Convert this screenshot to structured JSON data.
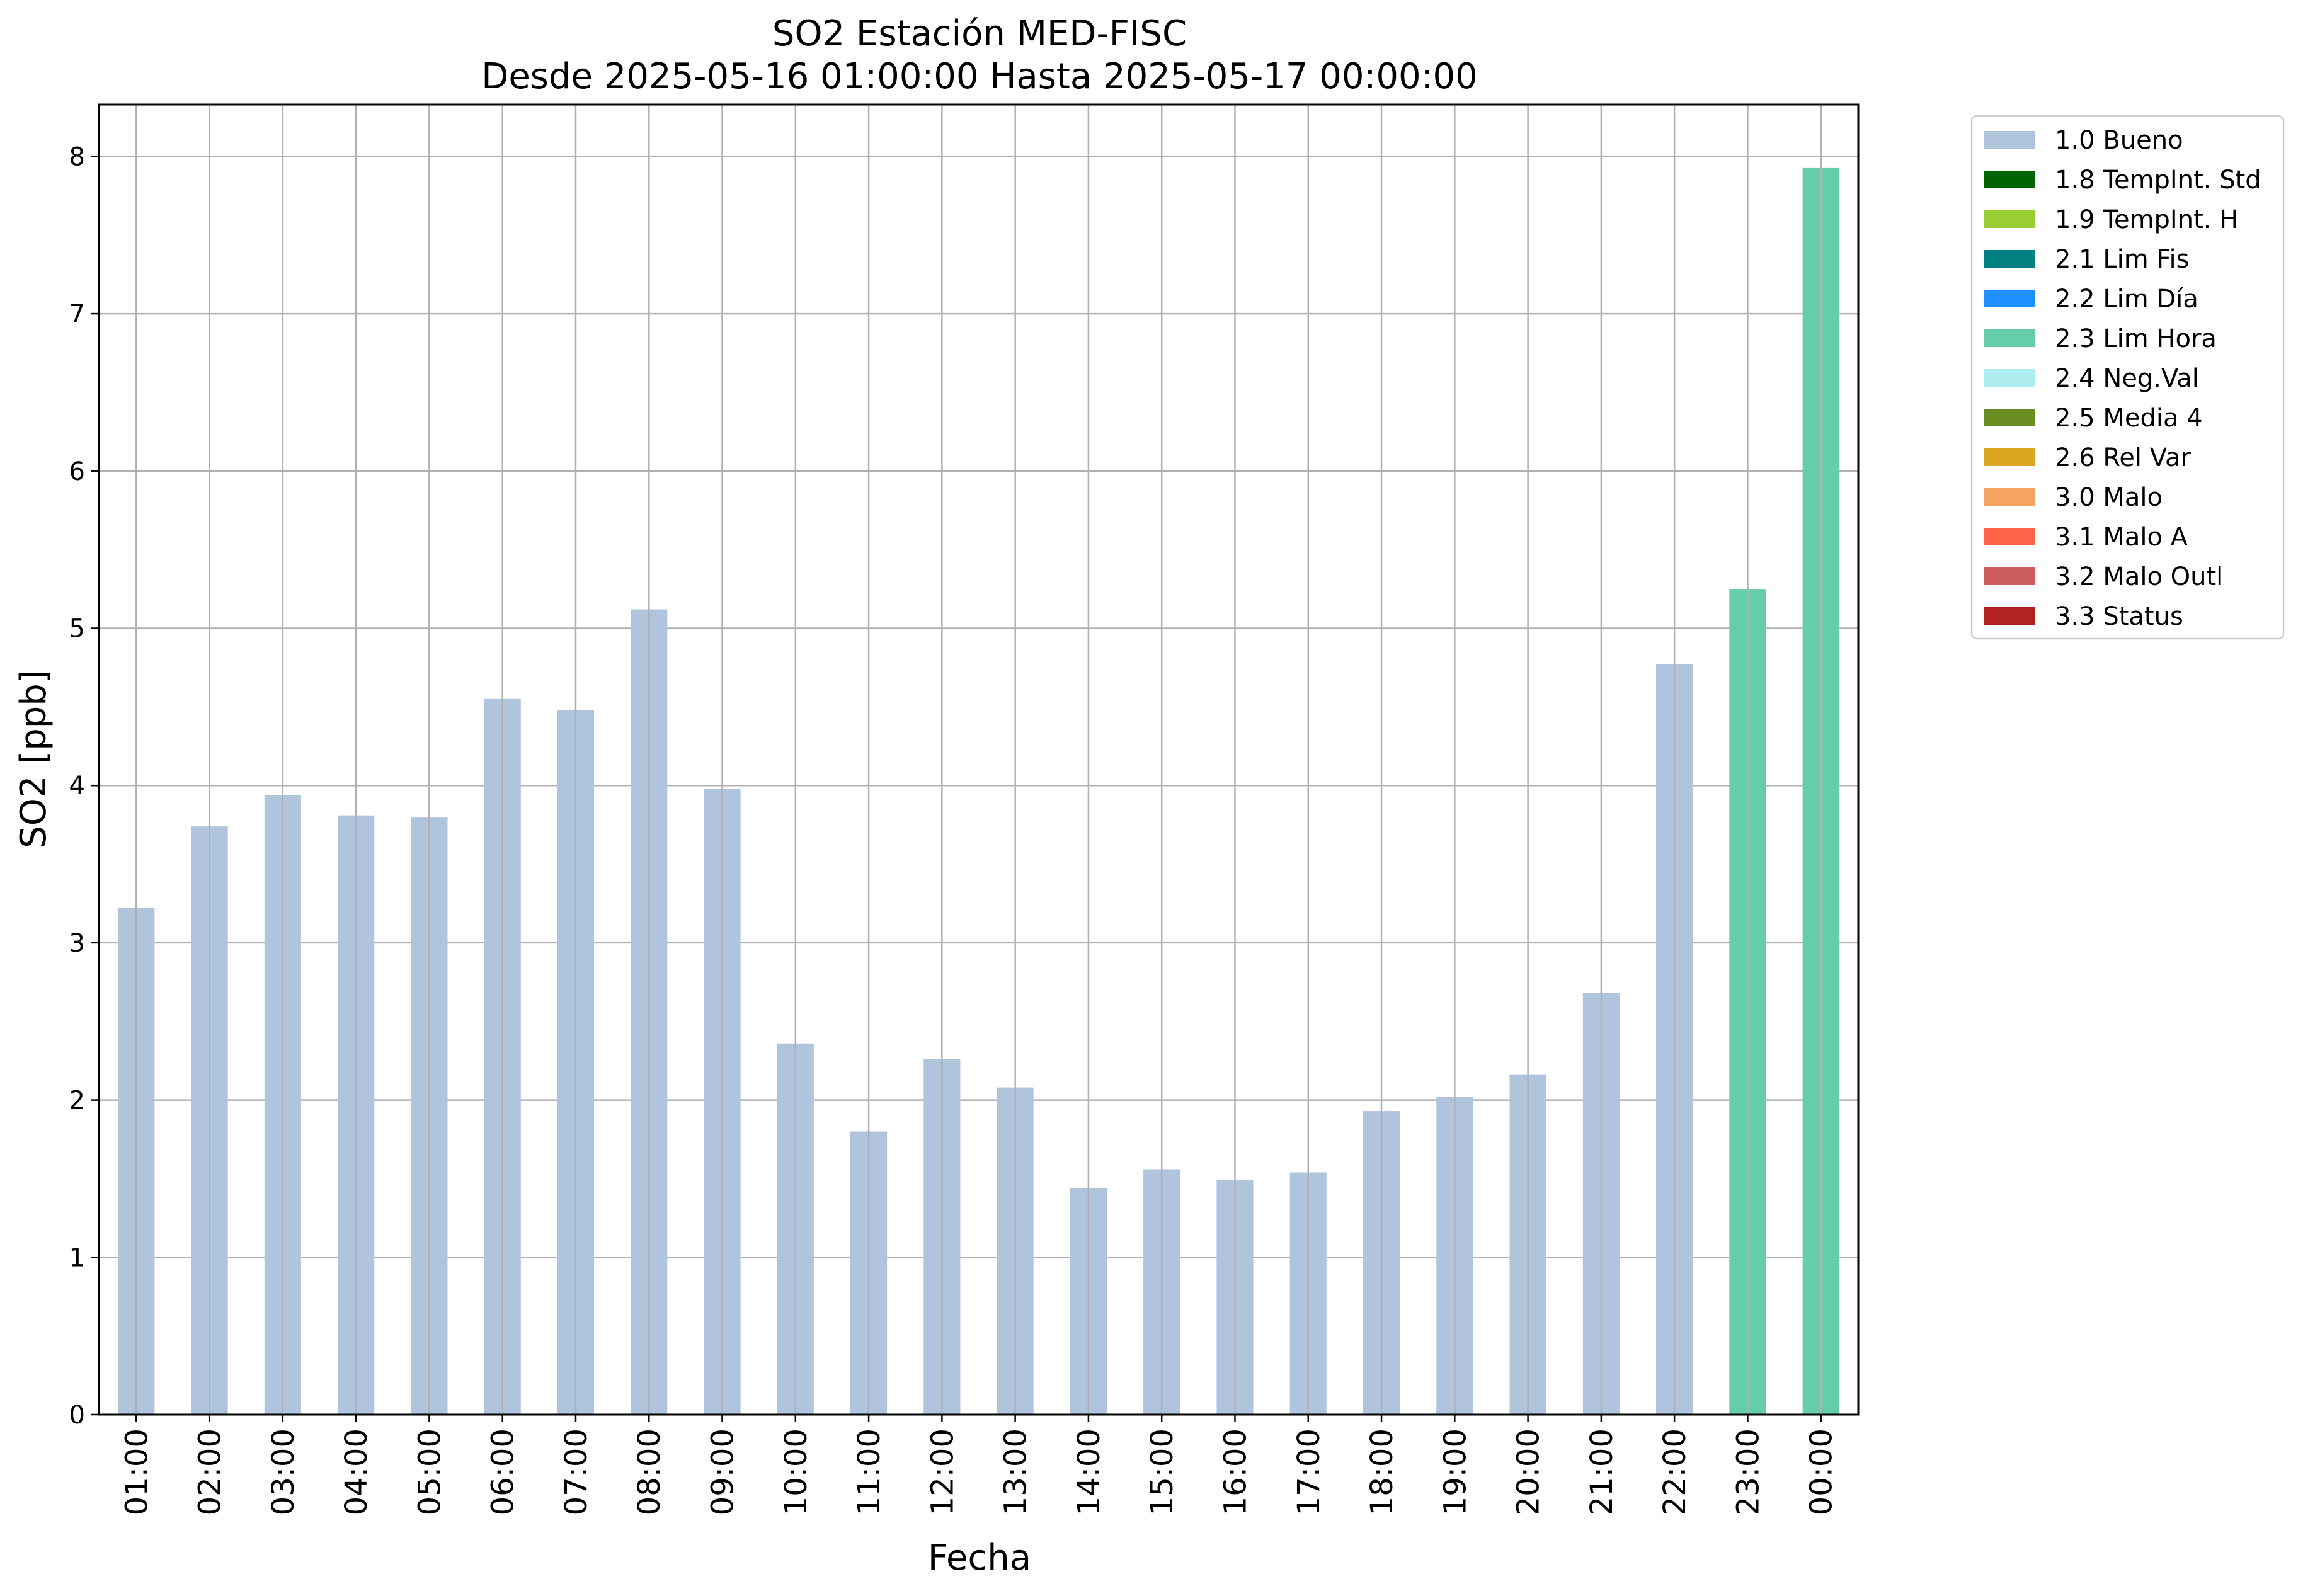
{
  "chart_data": {
    "type": "bar",
    "title": "SO2 Estación MED-FISC",
    "subtitle": "Desde 2025-05-16 01:00:00 Hasta 2025-05-17 00:00:00",
    "xlabel": "Fecha",
    "ylabel": "SO2 [ppb]",
    "ylim": [
      0,
      8.33
    ],
    "yticks": [
      "0",
      "1",
      "2",
      "3",
      "4",
      "5",
      "6",
      "7",
      "8"
    ],
    "grid": true,
    "legend_position": "outside-top-right",
    "categories": [
      "01:00",
      "02:00",
      "03:00",
      "04:00",
      "05:00",
      "06:00",
      "07:00",
      "08:00",
      "09:00",
      "10:00",
      "11:00",
      "12:00",
      "13:00",
      "14:00",
      "15:00",
      "16:00",
      "17:00",
      "18:00",
      "19:00",
      "20:00",
      "21:00",
      "22:00",
      "23:00",
      "00:00"
    ],
    "values": [
      3.22,
      3.74,
      3.94,
      3.81,
      3.8,
      4.55,
      4.48,
      5.12,
      3.98,
      2.36,
      1.8,
      2.26,
      2.08,
      1.44,
      1.56,
      1.49,
      1.54,
      1.93,
      2.02,
      2.16,
      2.68,
      4.77,
      5.25,
      7.93
    ],
    "flags": [
      "1.0 Bueno",
      "1.0 Bueno",
      "1.0 Bueno",
      "1.0 Bueno",
      "1.0 Bueno",
      "1.0 Bueno",
      "1.0 Bueno",
      "1.0 Bueno",
      "1.0 Bueno",
      "1.0 Bueno",
      "1.0 Bueno",
      "1.0 Bueno",
      "1.0 Bueno",
      "1.0 Bueno",
      "1.0 Bueno",
      "1.0 Bueno",
      "1.0 Bueno",
      "1.0 Bueno",
      "1.0 Bueno",
      "1.0 Bueno",
      "1.0 Bueno",
      "1.0 Bueno",
      "2.3 Lim Hora",
      "2.3 Lim Hora"
    ],
    "legend": [
      {
        "label": "1.0 Bueno",
        "color": "#b0c4de"
      },
      {
        "label": "1.8 TempInt. Std",
        "color": "#006400"
      },
      {
        "label": "1.9 TempInt. H",
        "color": "#9acd32"
      },
      {
        "label": "2.1 Lim Fis",
        "color": "#008080"
      },
      {
        "label": "2.2 Lim Día",
        "color": "#1e90ff"
      },
      {
        "label": "2.3 Lim Hora",
        "color": "#66cdaa"
      },
      {
        "label": "2.4 Neg.Val",
        "color": "#afeeee"
      },
      {
        "label": "2.5 Media 4",
        "color": "#6b8e23"
      },
      {
        "label": "2.6 Rel Var",
        "color": "#daa520"
      },
      {
        "label": "3.0 Malo",
        "color": "#f4a460"
      },
      {
        "label": "3.1 Malo A",
        "color": "#ff6347"
      },
      {
        "label": "3.2 Malo Outl",
        "color": "#cd5c5c"
      },
      {
        "label": "3.3 Status",
        "color": "#b22222"
      }
    ]
  }
}
